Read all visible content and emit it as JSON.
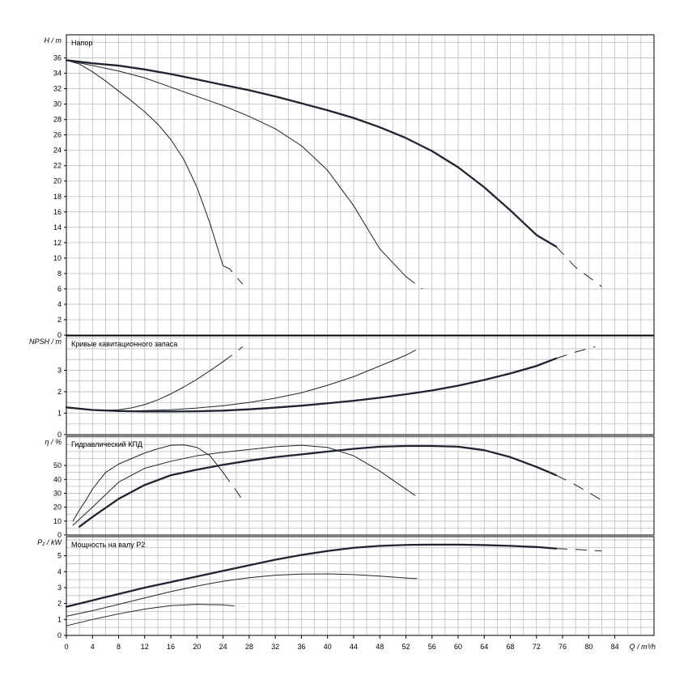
{
  "x_axis": {
    "label": "Q / m³/h",
    "ticks": [
      0,
      4,
      8,
      12,
      16,
      20,
      24,
      28,
      32,
      36,
      40,
      44,
      48,
      52,
      56,
      60,
      64,
      68,
      72,
      76,
      80,
      84
    ]
  },
  "chart_data": [
    {
      "type": "line",
      "title": "Напор",
      "ylabel": "H / m",
      "xlim": [
        0,
        90
      ],
      "ylim": [
        0,
        39
      ],
      "y_ticks": [
        0,
        2,
        4,
        6,
        8,
        10,
        12,
        14,
        16,
        18,
        20,
        22,
        24,
        26,
        28,
        30,
        32,
        34,
        36
      ],
      "series": [
        {
          "width": "thin",
          "x": [
            0,
            2,
            4,
            6,
            8,
            10,
            12,
            14,
            16,
            18,
            20,
            22,
            24,
            25,
            27
          ],
          "y": [
            35.7,
            35.2,
            34.2,
            33,
            31.7,
            30.4,
            29,
            27.4,
            25.4,
            22.8,
            19.2,
            14.5,
            9,
            8.6,
            6.6
          ],
          "dashed_from": 24
        },
        {
          "width": "thin",
          "x": [
            0,
            4,
            8,
            12,
            16,
            20,
            24,
            28,
            32,
            36,
            40,
            44,
            48,
            52,
            54.5
          ],
          "y": [
            35.7,
            35,
            34.3,
            33.4,
            32.2,
            31,
            29.8,
            28.4,
            26.8,
            24.6,
            21.4,
            16.8,
            11.2,
            7.6,
            6
          ],
          "dashed_from": 49
        },
        {
          "width": "thick",
          "x": [
            0,
            4,
            8,
            12,
            16,
            20,
            24,
            28,
            32,
            36,
            40,
            44,
            48,
            52,
            56,
            60,
            64,
            68,
            72,
            75,
            78,
            82
          ],
          "y": [
            35.7,
            35.3,
            35,
            34.5,
            33.9,
            33.2,
            32.5,
            31.8,
            31,
            30.1,
            29.2,
            28.2,
            27,
            25.6,
            23.9,
            21.8,
            19.2,
            16.2,
            13,
            11.5,
            8.8,
            6.3
          ],
          "dashed_from": 75
        }
      ]
    },
    {
      "type": "line",
      "title": "Кривые кавитационного запаса",
      "ylabel": "NPSH / m",
      "xlim": [
        0,
        90
      ],
      "ylim": [
        0,
        4.6
      ],
      "y_ticks": [
        0,
        1,
        2,
        3
      ],
      "series": [
        {
          "width": "thin",
          "x": [
            0,
            2,
            4,
            6,
            8,
            10,
            12,
            14,
            16,
            18,
            20,
            22,
            24,
            26,
            27
          ],
          "y": [
            1.27,
            1.2,
            1.15,
            1.13,
            1.16,
            1.25,
            1.4,
            1.62,
            1.9,
            2.22,
            2.58,
            2.98,
            3.4,
            3.85,
            4.1
          ],
          "dashed_from": 24
        },
        {
          "width": "thin",
          "x": [
            0,
            4,
            8,
            12,
            16,
            20,
            24,
            28,
            32,
            36,
            40,
            44,
            48,
            52,
            54.5
          ],
          "y": [
            1.27,
            1.15,
            1.1,
            1.12,
            1.16,
            1.24,
            1.35,
            1.5,
            1.7,
            1.95,
            2.3,
            2.7,
            3.2,
            3.7,
            4.1
          ],
          "dashed_from": 49
        },
        {
          "width": "thick",
          "x": [
            0,
            4,
            8,
            12,
            16,
            20,
            24,
            28,
            32,
            36,
            40,
            44,
            48,
            52,
            56,
            60,
            64,
            68,
            72,
            75,
            78,
            81
          ],
          "y": [
            1.27,
            1.15,
            1.1,
            1.08,
            1.08,
            1.09,
            1.12,
            1.18,
            1.26,
            1.35,
            1.46,
            1.58,
            1.72,
            1.88,
            2.06,
            2.28,
            2.55,
            2.85,
            3.2,
            3.55,
            3.85,
            4.1
          ],
          "dashed_from": 75
        }
      ]
    },
    {
      "type": "line",
      "title": "Гидравлический КПД",
      "ylabel": "η / %",
      "xlim": [
        0,
        90
      ],
      "ylim": [
        0,
        71
      ],
      "y_ticks": [
        0,
        10,
        20,
        30,
        40,
        50
      ],
      "series": [
        {
          "width": "thin",
          "x": [
            1,
            2,
            3,
            4,
            6,
            8,
            10,
            12,
            14,
            16,
            18,
            20,
            22,
            24,
            26,
            27
          ],
          "y": [
            10,
            18,
            25,
            33,
            45,
            51,
            55,
            59,
            62,
            64.5,
            64.8,
            63,
            57,
            45,
            32,
            25
          ],
          "dashed_from": 24
        },
        {
          "width": "thin",
          "x": [
            1,
            4,
            8,
            12,
            16,
            20,
            24,
            28,
            32,
            36,
            40,
            44,
            48,
            52,
            54.5
          ],
          "y": [
            7,
            20,
            38,
            48,
            53,
            57,
            59.5,
            61.5,
            63.5,
            64.5,
            63,
            57,
            46,
            33,
            25
          ],
          "dashed_from": 49
        },
        {
          "width": "thick",
          "x": [
            2,
            4,
            8,
            12,
            16,
            20,
            24,
            28,
            32,
            36,
            40,
            44,
            48,
            52,
            56,
            60,
            64,
            68,
            72,
            75,
            78,
            82
          ],
          "y": [
            6,
            13,
            26,
            36,
            43,
            47,
            50.5,
            53.5,
            56,
            58,
            60,
            62,
            63.5,
            64,
            64,
            63.5,
            61,
            56,
            49,
            43,
            36,
            25
          ],
          "dashed_from": 75
        }
      ]
    },
    {
      "type": "line",
      "title": "Мощность на валу P2",
      "ylabel": "P₂ / kW",
      "xlim": [
        0,
        90
      ],
      "ylim": [
        0,
        6.2
      ],
      "y_ticks": [
        0,
        1,
        2,
        3,
        4,
        5
      ],
      "series": [
        {
          "width": "thin",
          "x": [
            0,
            4,
            8,
            12,
            16,
            20,
            24,
            27
          ],
          "y": [
            0.6,
            1,
            1.35,
            1.65,
            1.87,
            1.95,
            1.92,
            1.8
          ],
          "dashed_from": 24
        },
        {
          "width": "thin",
          "x": [
            0,
            4,
            8,
            12,
            16,
            20,
            24,
            28,
            32,
            36,
            40,
            44,
            48,
            52,
            54.5
          ],
          "y": [
            1.2,
            1.55,
            1.95,
            2.35,
            2.75,
            3.1,
            3.4,
            3.62,
            3.78,
            3.85,
            3.86,
            3.82,
            3.72,
            3.6,
            3.55
          ],
          "dashed_from": 49
        },
        {
          "width": "thick",
          "x": [
            0,
            4,
            8,
            12,
            16,
            20,
            24,
            28,
            32,
            36,
            40,
            44,
            48,
            52,
            56,
            60,
            64,
            68,
            72,
            75,
            78,
            82
          ],
          "y": [
            1.8,
            2.2,
            2.6,
            3,
            3.35,
            3.7,
            4.05,
            4.4,
            4.75,
            5.05,
            5.3,
            5.5,
            5.62,
            5.68,
            5.7,
            5.7,
            5.67,
            5.62,
            5.55,
            5.45,
            5.4,
            5.3
          ],
          "dashed_from": 75
        }
      ]
    }
  ]
}
